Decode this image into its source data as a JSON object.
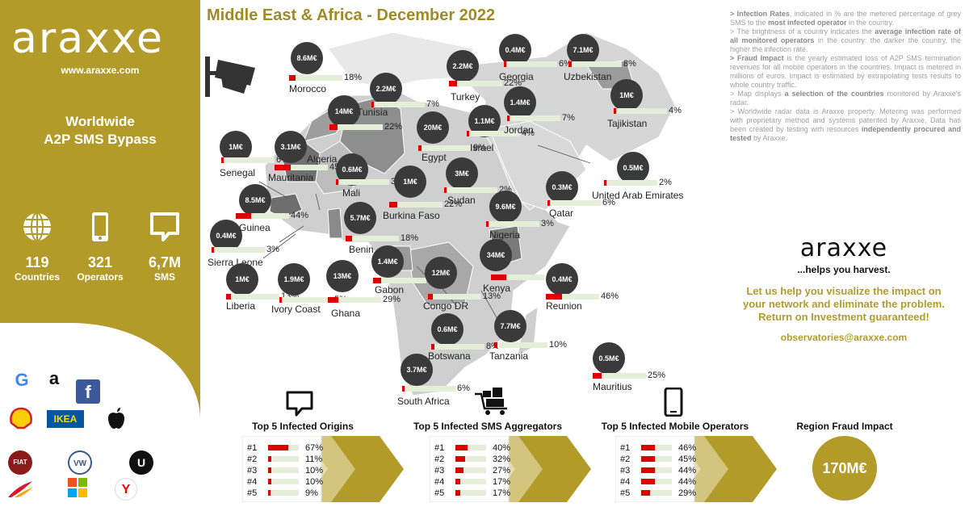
{
  "sidebar": {
    "logo": "araxxe",
    "url": "www.araxxe.com",
    "headline_1": "Worldwide",
    "headline_2": "A2P SMS Bypass",
    "stats": [
      {
        "num": "119",
        "label": "Countries",
        "icon": "globe-icon"
      },
      {
        "num": "321",
        "label": "Operators",
        "icon": "phone-icon"
      },
      {
        "num": "6,7M",
        "label": "SMS",
        "icon": "message-icon"
      }
    ],
    "brands": [
      "google-logo",
      "amazon-logo",
      "facebook-logo",
      "shell-logo",
      "ikea-logo",
      "apple-logo",
      "fiat-logo",
      "volkswagen-logo",
      "uber-logo",
      "iberia-logo",
      "microsoft-logo",
      "yandex-logo"
    ],
    "brand_text": {
      "google": "G",
      "amazon": "a",
      "facebook": "f",
      "ikea": "IKEA",
      "fiat": "FIAT",
      "vw": "VW",
      "uber": "U",
      "yandex": "Y"
    }
  },
  "title": "Middle East & Africa - December 2022",
  "notes": {
    "p1_a": "> Infection Rates",
    "p1_b": ", indicated in % are the metered percentage of grey SMS to the ",
    "p1_c": "most infected operator",
    "p1_d": " in the country.",
    "p2_a": "> The brightness of a country indicates the ",
    "p2_b": "average infection rate of all monitored operators",
    "p2_c": " in the country: the darker the country, the higher the infection rate.",
    "p3_a": "> Fraud Impact",
    "p3_b": " is the yearly estimated loss of A2P SMS termination revenues for all mobile operators in the countries. Impact is metered in millions of euros. Impact is estimated by extrapolating tests results to whole country traffic.",
    "p4_a": "> Map displays ",
    "p4_b": "a selection of the countries",
    "p4_c": " monitored by Araxxe's radar.",
    "p5_a": "> Worldwide radar data is Araxxe property. Metering was performed with proprietary method and systems patented by Araxxe. Data has been created by testing with resources ",
    "p5_b": "independently procured and tested",
    "p5_c": " by Araxxe."
  },
  "promo": {
    "brand": "araxxe",
    "tagline": "...helps you harvest.",
    "msg_1": "Let us help you visualize the impact on",
    "msg_2": "your network and eliminate the problem.",
    "msg_3": "Return on Investment guaranteed!",
    "email": "observatories@araxxe.com"
  },
  "countries": [
    {
      "name": "Morocco",
      "impact": "8.6M€",
      "rate": "18%",
      "fill": 0.18
    },
    {
      "name": "Tunisia",
      "impact": "2.2M€",
      "rate": "7%",
      "fill": 0.07
    },
    {
      "name": "Algeria",
      "impact": "14M€",
      "rate": "22%",
      "fill": 0.22
    },
    {
      "name": "Egypt",
      "impact": "20M€",
      "rate": "9%",
      "fill": 0.09
    },
    {
      "name": "Israel",
      "impact": "1.1M€",
      "rate": "4%",
      "fill": 0.04
    },
    {
      "name": "Turkey",
      "impact": "2.2M€",
      "rate": "22%",
      "fill": 0.22
    },
    {
      "name": "Georgia",
      "impact": "0.4M€",
      "rate": "6%",
      "fill": 0.06
    },
    {
      "name": "Uzbekistan",
      "impact": "7.1M€",
      "rate": "8%",
      "fill": 0.08
    },
    {
      "name": "Tajikistan",
      "impact": "1M€",
      "rate": "4%",
      "fill": 0.04
    },
    {
      "name": "Jordan",
      "impact": "1.4M€",
      "rate": "7%",
      "fill": 0.07
    },
    {
      "name": "Senegal",
      "impact": "1M€",
      "rate": "6%",
      "fill": 0.06
    },
    {
      "name": "Mauritania",
      "impact": "3.1M€",
      "rate": "45%",
      "fill": 0.45
    },
    {
      "name": "Mali",
      "impact": "0.6M€",
      "rate": "3%",
      "fill": 0.03
    },
    {
      "name": "Sudan",
      "impact": "3M€",
      "rate": "2%",
      "fill": 0.02
    },
    {
      "name": "United Arab Emirates",
      "impact": "0.5M€",
      "rate": "2%",
      "fill": 0.02
    },
    {
      "name": "Qatar",
      "impact": "0.3M€",
      "rate": "6%",
      "fill": 0.06
    },
    {
      "name": "Guinea",
      "impact": "8.5M€",
      "rate": "44%",
      "fill": 0.44
    },
    {
      "name": "Burkina Faso",
      "impact": "1M€",
      "rate": "22%",
      "fill": 0.22
    },
    {
      "name": "Nigeria",
      "impact": "9.6M€",
      "rate": "3%",
      "fill": 0.03
    },
    {
      "name": "Sierra Leone",
      "impact": "0.4M€",
      "rate": "3%",
      "fill": 0.03
    },
    {
      "name": "Benin",
      "impact": "5.7M€",
      "rate": "18%",
      "fill": 0.18
    },
    {
      "name": "Gabon",
      "impact": "1.4M€",
      "rate": "22%",
      "fill": 0.22
    },
    {
      "name": "Kenya",
      "impact": "34M€",
      "rate": "44%",
      "fill": 0.44
    },
    {
      "name": "Reunion",
      "impact": "0.4M€",
      "rate": "46%",
      "fill": 0.46
    },
    {
      "name": "Liberia",
      "impact": "1M€",
      "rate": "13%",
      "fill": 0.13
    },
    {
      "name": "Ivory Coast",
      "impact": "1.9M€",
      "rate": "5%",
      "fill": 0.05
    },
    {
      "name": "Ghana",
      "impact": "13M€",
      "rate": "29%",
      "fill": 0.29
    },
    {
      "name": "Congo DR",
      "impact": "12M€",
      "rate": "13%",
      "fill": 0.13
    },
    {
      "name": "Botswana",
      "impact": "0.6M€",
      "rate": "8%",
      "fill": 0.08
    },
    {
      "name": "Tanzania",
      "impact": "7.7M€",
      "rate": "10%",
      "fill": 0.1
    },
    {
      "name": "Mauritius",
      "impact": "0.5M€",
      "rate": "25%",
      "fill": 0.25
    },
    {
      "name": "South Africa",
      "impact": "3.7M€",
      "rate": "6%",
      "fill": 0.06
    }
  ],
  "panels": [
    {
      "title": "Top 5 Infected Origins",
      "icon": "message-outline-icon",
      "rows": [
        {
          "rank": "#1",
          "pct": "67%",
          "fill": 0.67
        },
        {
          "rank": "#2",
          "pct": "11%",
          "fill": 0.11
        },
        {
          "rank": "#3",
          "pct": "10%",
          "fill": 0.1
        },
        {
          "rank": "#4",
          "pct": "10%",
          "fill": 0.1
        },
        {
          "rank": "#5",
          "pct": "9%",
          "fill": 0.09
        }
      ]
    },
    {
      "title": "Top 5 Infected SMS Aggregators",
      "icon": "cart-icon",
      "rows": [
        {
          "rank": "#1",
          "pct": "40%",
          "fill": 0.4
        },
        {
          "rank": "#2",
          "pct": "32%",
          "fill": 0.32
        },
        {
          "rank": "#3",
          "pct": "27%",
          "fill": 0.27
        },
        {
          "rank": "#4",
          "pct": "17%",
          "fill": 0.17
        },
        {
          "rank": "#5",
          "pct": "17%",
          "fill": 0.17
        }
      ]
    },
    {
      "title": "Top 5 Infected Mobile Operators",
      "icon": "mobile-icon",
      "rows": [
        {
          "rank": "#1",
          "pct": "46%",
          "fill": 0.46
        },
        {
          "rank": "#2",
          "pct": "45%",
          "fill": 0.45
        },
        {
          "rank": "#3",
          "pct": "44%",
          "fill": 0.44
        },
        {
          "rank": "#4",
          "pct": "44%",
          "fill": 0.44
        },
        {
          "rank": "#5",
          "pct": "29%",
          "fill": 0.29
        }
      ]
    }
  ],
  "region": {
    "title": "Region Fraud Impact",
    "value": "170M€"
  },
  "colors": {
    "gold": "#b39b2a",
    "red": "#dd0000",
    "bar_bg": "#e4eed8",
    "bubble": "#3a3a3a"
  }
}
